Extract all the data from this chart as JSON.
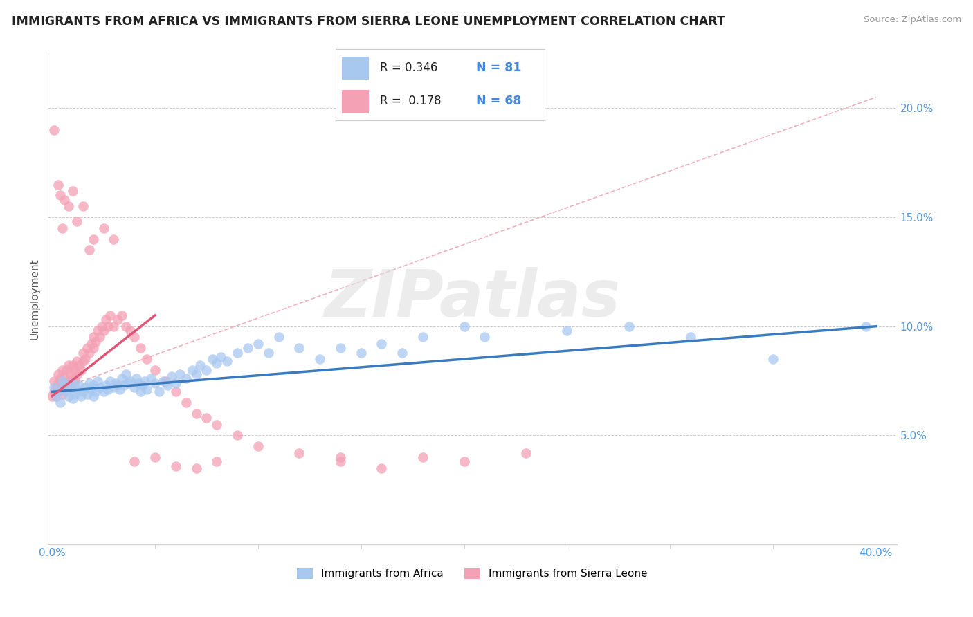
{
  "title": "IMMIGRANTS FROM AFRICA VS IMMIGRANTS FROM SIERRA LEONE UNEMPLOYMENT CORRELATION CHART",
  "source": "Source: ZipAtlas.com",
  "ylabel": "Unemployment",
  "xlim": [
    0.0,
    0.4
  ],
  "ylim": [
    0.0,
    0.22
  ],
  "R_africa": 0.346,
  "N_africa": 81,
  "R_sierra": 0.178,
  "N_sierra": 68,
  "africa_color": "#a8c8f0",
  "sierra_color": "#f4a0b5",
  "trend_africa_color": "#3a7bbf",
  "trend_sierra_color": "#e05575",
  "diagonal_color": "#e8b0bc",
  "watermark_color": "#d8d8d8",
  "africa_scatter_x": [
    0.001,
    0.002,
    0.003,
    0.004,
    0.005,
    0.006,
    0.007,
    0.008,
    0.009,
    0.01,
    0.01,
    0.011,
    0.012,
    0.013,
    0.014,
    0.015,
    0.016,
    0.017,
    0.018,
    0.019,
    0.02,
    0.02,
    0.021,
    0.022,
    0.023,
    0.025,
    0.026,
    0.027,
    0.028,
    0.03,
    0.031,
    0.032,
    0.033,
    0.034,
    0.035,
    0.036,
    0.037,
    0.038,
    0.04,
    0.041,
    0.042,
    0.043,
    0.044,
    0.045,
    0.046,
    0.048,
    0.05,
    0.052,
    0.054,
    0.056,
    0.058,
    0.06,
    0.062,
    0.065,
    0.068,
    0.07,
    0.072,
    0.075,
    0.078,
    0.08,
    0.082,
    0.085,
    0.09,
    0.095,
    0.1,
    0.105,
    0.11,
    0.12,
    0.13,
    0.14,
    0.15,
    0.16,
    0.17,
    0.18,
    0.2,
    0.21,
    0.25,
    0.28,
    0.31,
    0.35,
    0.395
  ],
  "africa_scatter_y": [
    0.072,
    0.068,
    0.07,
    0.065,
    0.075,
    0.073,
    0.07,
    0.068,
    0.072,
    0.067,
    0.074,
    0.069,
    0.071,
    0.073,
    0.068,
    0.07,
    0.072,
    0.069,
    0.074,
    0.071,
    0.073,
    0.068,
    0.07,
    0.075,
    0.072,
    0.07,
    0.073,
    0.071,
    0.075,
    0.072,
    0.074,
    0.073,
    0.071,
    0.076,
    0.073,
    0.078,
    0.074,
    0.075,
    0.072,
    0.076,
    0.074,
    0.07,
    0.073,
    0.075,
    0.071,
    0.076,
    0.074,
    0.07,
    0.075,
    0.073,
    0.077,
    0.074,
    0.078,
    0.076,
    0.08,
    0.078,
    0.082,
    0.08,
    0.085,
    0.083,
    0.086,
    0.084,
    0.088,
    0.09,
    0.092,
    0.088,
    0.095,
    0.09,
    0.085,
    0.09,
    0.088,
    0.092,
    0.088,
    0.095,
    0.1,
    0.095,
    0.098,
    0.1,
    0.095,
    0.085,
    0.1
  ],
  "sierra_scatter_x": [
    0.0,
    0.001,
    0.001,
    0.002,
    0.002,
    0.003,
    0.003,
    0.003,
    0.004,
    0.004,
    0.005,
    0.005,
    0.005,
    0.006,
    0.006,
    0.007,
    0.007,
    0.008,
    0.008,
    0.009,
    0.009,
    0.01,
    0.01,
    0.011,
    0.011,
    0.012,
    0.012,
    0.013,
    0.014,
    0.015,
    0.015,
    0.016,
    0.017,
    0.018,
    0.019,
    0.02,
    0.02,
    0.021,
    0.022,
    0.023,
    0.024,
    0.025,
    0.026,
    0.027,
    0.028,
    0.03,
    0.032,
    0.034,
    0.036,
    0.038,
    0.04,
    0.043,
    0.046,
    0.05,
    0.055,
    0.06,
    0.065,
    0.07,
    0.075,
    0.08,
    0.09,
    0.1,
    0.12,
    0.14,
    0.16,
    0.18,
    0.2,
    0.23
  ],
  "sierra_scatter_y": [
    0.068,
    0.075,
    0.07,
    0.072,
    0.068,
    0.074,
    0.07,
    0.078,
    0.072,
    0.076,
    0.069,
    0.074,
    0.08,
    0.072,
    0.076,
    0.074,
    0.08,
    0.075,
    0.082,
    0.078,
    0.072,
    0.076,
    0.082,
    0.08,
    0.075,
    0.078,
    0.084,
    0.082,
    0.08,
    0.084,
    0.088,
    0.085,
    0.09,
    0.088,
    0.092,
    0.09,
    0.095,
    0.093,
    0.098,
    0.095,
    0.1,
    0.098,
    0.103,
    0.1,
    0.105,
    0.1,
    0.103,
    0.105,
    0.1,
    0.098,
    0.095,
    0.09,
    0.085,
    0.08,
    0.075,
    0.07,
    0.065,
    0.06,
    0.058,
    0.055,
    0.05,
    0.045,
    0.042,
    0.038,
    0.035,
    0.04,
    0.038,
    0.042
  ],
  "sierra_outliers_x": [
    0.001,
    0.003,
    0.004,
    0.005,
    0.006,
    0.008,
    0.01,
    0.012,
    0.015,
    0.018,
    0.02,
    0.025,
    0.03,
    0.04,
    0.05,
    0.06,
    0.07,
    0.08,
    0.14
  ],
  "sierra_outliers_y": [
    0.19,
    0.165,
    0.16,
    0.145,
    0.158,
    0.155,
    0.162,
    0.148,
    0.155,
    0.135,
    0.14,
    0.145,
    0.14,
    0.038,
    0.04,
    0.036,
    0.035,
    0.038,
    0.04
  ]
}
